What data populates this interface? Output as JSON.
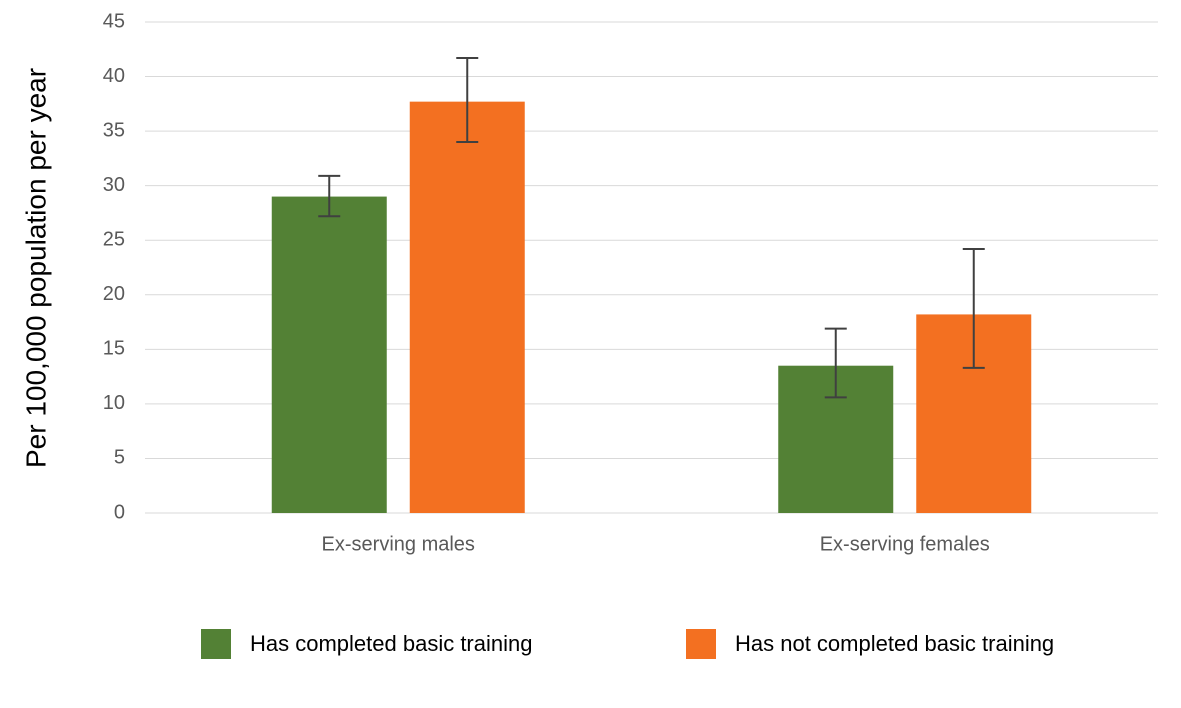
{
  "chart_data": {
    "type": "bar",
    "y_label": "Per 100,000 population per year",
    "categories": [
      "Ex-serving males",
      "Ex-serving females"
    ],
    "series": [
      {
        "name": "Has completed basic training",
        "color": "#538135",
        "values": [
          29.0,
          13.5
        ],
        "lower": [
          27.2,
          10.6
        ],
        "upper": [
          30.9,
          16.9
        ]
      },
      {
        "name": "Has not completed basic training",
        "color": "#f37021",
        "values": [
          37.7,
          18.2
        ],
        "lower": [
          34.0,
          13.3
        ],
        "upper": [
          41.7,
          24.2
        ]
      }
    ],
    "ylim": [
      0,
      45
    ],
    "yticks": [
      0,
      5,
      10,
      15,
      20,
      25,
      30,
      35,
      40,
      45
    ],
    "grid": true,
    "error_color": "#404040"
  }
}
